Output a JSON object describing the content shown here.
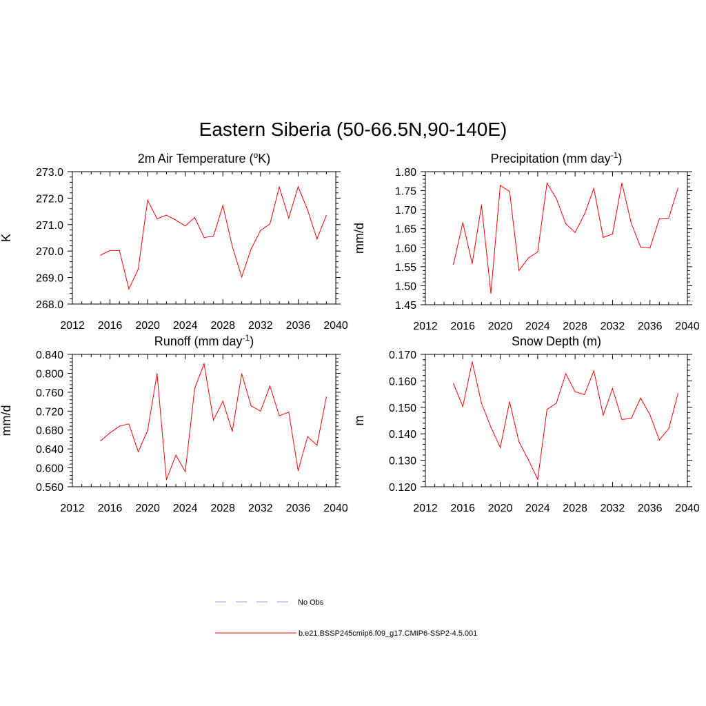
{
  "figure": {
    "title": "Eastern Siberia (50-66.5N,90-140E)"
  },
  "legend": {
    "items": [
      {
        "label": "No Obs",
        "color": "#9999ff",
        "dash": true
      },
      {
        "label": "b.e21.BSSP245cmip6.f09_g17.CMIP6-SSP2-4.5.001",
        "color": "#ff0000",
        "dash": false
      }
    ]
  },
  "chart_data": [
    {
      "type": "line",
      "title": "2m Air Temperature (",
      "title_sup_pre": "o",
      "title_after_sup": "K)",
      "title_sup_post": "",
      "title_tail": "",
      "ylabel": "K",
      "xlim": [
        2012,
        2040
      ],
      "ylim": [
        268.0,
        273.0
      ],
      "xticks": [
        "2012",
        "2016",
        "2020",
        "2024",
        "2028",
        "2032",
        "2036",
        "2040"
      ],
      "yticks": [
        "268.0",
        "269.0",
        "270.0",
        "271.0",
        "272.0",
        "273.0"
      ],
      "series": [
        {
          "color": "#ff0000",
          "x": [
            2015,
            2016,
            2017,
            2018,
            2019,
            2020,
            2021,
            2022,
            2023,
            2024,
            2025,
            2026,
            2027,
            2028,
            2029,
            2030,
            2031,
            2032,
            2033,
            2034,
            2035,
            2036,
            2037,
            2038,
            2039
          ],
          "values": [
            269.85,
            270.02,
            270.02,
            268.57,
            269.32,
            271.92,
            271.22,
            271.36,
            271.17,
            270.95,
            271.27,
            270.51,
            270.57,
            271.72,
            270.18,
            269.02,
            270.08,
            270.78,
            271.02,
            272.42,
            271.25,
            272.43,
            271.56,
            270.46,
            271.35
          ]
        }
      ]
    },
    {
      "type": "line",
      "title": "Precipitation (mm day",
      "title_sup_pre": "",
      "title_after_sup": "",
      "title_sup_post": "-1",
      "title_tail": ")",
      "ylabel": "mm/d",
      "xlim": [
        2012,
        2040
      ],
      "ylim": [
        1.45,
        1.8
      ],
      "xticks": [
        "2012",
        "2016",
        "2020",
        "2024",
        "2028",
        "2032",
        "2036",
        "2040"
      ],
      "yticks": [
        "1.45",
        "1.50",
        "1.55",
        "1.60",
        "1.65",
        "1.70",
        "1.75",
        "1.80"
      ],
      "series": [
        {
          "color": "#ff0000",
          "x": [
            2015,
            2016,
            2017,
            2018,
            2019,
            2020,
            2021,
            2022,
            2023,
            2024,
            2025,
            2026,
            2027,
            2028,
            2029,
            2030,
            2031,
            2032,
            2033,
            2034,
            2035,
            2036,
            2037,
            2038,
            2039
          ],
          "values": [
            1.556,
            1.666,
            1.558,
            1.712,
            1.48,
            1.764,
            1.748,
            1.54,
            1.573,
            1.589,
            1.77,
            1.729,
            1.663,
            1.64,
            1.688,
            1.756,
            1.627,
            1.636,
            1.77,
            1.664,
            1.602,
            1.599,
            1.676,
            1.678,
            1.757
          ]
        }
      ]
    },
    {
      "type": "line",
      "title": "Runoff (mm day",
      "title_sup_pre": "",
      "title_after_sup": "",
      "title_sup_post": "-1",
      "title_tail": ")",
      "ylabel": "mm/d",
      "xlim": [
        2012,
        2040
      ],
      "ylim": [
        0.56,
        0.84
      ],
      "xticks": [
        "2012",
        "2016",
        "2020",
        "2024",
        "2028",
        "2032",
        "2036",
        "2040"
      ],
      "yticks": [
        "0.560",
        "0.600",
        "0.640",
        "0.680",
        "0.720",
        "0.760",
        "0.800",
        "0.840"
      ],
      "series": [
        {
          "color": "#ff0000",
          "x": [
            2015,
            2016,
            2017,
            2018,
            2019,
            2020,
            2021,
            2022,
            2023,
            2024,
            2025,
            2026,
            2027,
            2028,
            2029,
            2030,
            2031,
            2032,
            2033,
            2034,
            2035,
            2036,
            2037,
            2038,
            2039
          ],
          "values": [
            0.657,
            0.674,
            0.688,
            0.693,
            0.634,
            0.679,
            0.799,
            0.575,
            0.627,
            0.592,
            0.768,
            0.82,
            0.701,
            0.741,
            0.677,
            0.799,
            0.731,
            0.72,
            0.773,
            0.71,
            0.718,
            0.594,
            0.666,
            0.648,
            0.75
          ]
        }
      ]
    },
    {
      "type": "line",
      "title": "Snow Depth (m)",
      "title_sup_pre": "",
      "title_after_sup": "",
      "title_sup_post": "",
      "title_tail": "",
      "ylabel": "m",
      "xlim": [
        2012,
        2040
      ],
      "ylim": [
        0.12,
        0.17
      ],
      "xticks": [
        "2012",
        "2016",
        "2020",
        "2024",
        "2028",
        "2032",
        "2036",
        "2040"
      ],
      "yticks": [
        "0.120",
        "0.130",
        "0.140",
        "0.150",
        "0.160",
        "0.170"
      ],
      "series": [
        {
          "color": "#ff0000",
          "x": [
            2015,
            2016,
            2017,
            2018,
            2019,
            2020,
            2021,
            2022,
            2023,
            2024,
            2025,
            2026,
            2027,
            2028,
            2029,
            2030,
            2031,
            2032,
            2033,
            2034,
            2035,
            2036,
            2037,
            2038,
            2039
          ],
          "values": [
            0.1589,
            0.1503,
            0.1672,
            0.1515,
            0.1425,
            0.1348,
            0.1521,
            0.137,
            0.1302,
            0.1228,
            0.1492,
            0.1516,
            0.1627,
            0.1559,
            0.1548,
            0.1638,
            0.147,
            0.1571,
            0.1454,
            0.1458,
            0.1535,
            0.1472,
            0.1377,
            0.1419,
            0.1552
          ]
        }
      ]
    }
  ]
}
